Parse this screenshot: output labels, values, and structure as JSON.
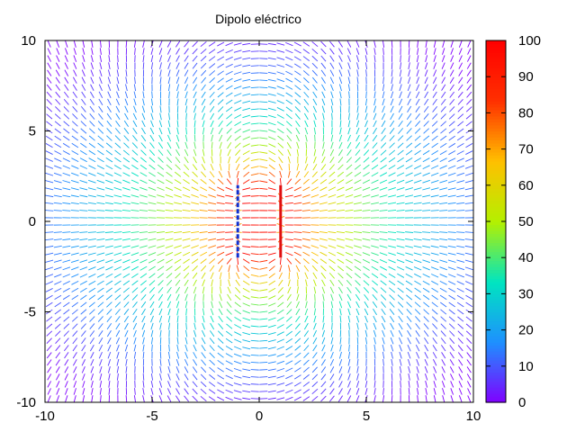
{
  "chart_data": {
    "type": "vector-field",
    "title": "Dipolo eléctrico",
    "xlabel": "",
    "ylabel": "",
    "xlim": [
      -10,
      10
    ],
    "ylim": [
      -10,
      10
    ],
    "x_ticks": [
      -10,
      -5,
      0,
      5,
      10
    ],
    "y_ticks": [
      -10,
      -5,
      0,
      5,
      10
    ],
    "grid": false,
    "colorbar": {
      "range": [
        0,
        100
      ],
      "ticks": [
        0,
        10,
        20,
        30,
        40,
        50,
        60,
        70,
        80,
        90,
        100
      ],
      "palette": "rainbow",
      "palette_colors": [
        "#8000ff",
        "#1e90ff",
        "#00e5c0",
        "#b4f000",
        "#ffc000",
        "#ff3000",
        "#ff0000"
      ]
    },
    "plates": [
      {
        "charge": "negative",
        "x": -1,
        "y_from": -2,
        "y_to": 2,
        "color": "#1030d0"
      },
      {
        "charge": "positive",
        "x": 1,
        "y_from": -2,
        "y_to": 2,
        "color": "#e01010"
      }
    ],
    "field": {
      "grid_step": 0.4,
      "vector_length": 0.38,
      "source_charges": [
        {
          "q": 1,
          "x": 1,
          "y_from": -2,
          "y_to": 2
        },
        {
          "q": -1,
          "x": -1,
          "y_from": -2,
          "y_to": 2
        }
      ]
    }
  }
}
